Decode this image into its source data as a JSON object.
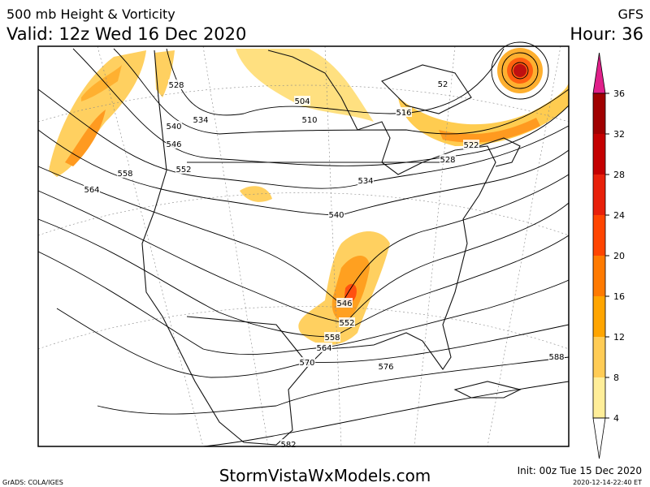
{
  "header": {
    "title": "500 mb Height & Vorticity",
    "valid": "Valid: 12z Wed 16 Dec 2020",
    "model": "GFS",
    "hour": "Hour: 36"
  },
  "colorbar": {
    "labels": [
      "36",
      "32",
      "28",
      "24",
      "20",
      "16",
      "12",
      "8",
      "4"
    ]
  },
  "contour_labels": [
    "528",
    "534",
    "540",
    "546",
    "552",
    "558",
    "564",
    "504",
    "510",
    "516",
    "522",
    "528",
    "534",
    "540",
    "546",
    "552",
    "558",
    "564",
    "570",
    "576",
    "588",
    "582",
    "52"
  ],
  "footer": {
    "credit": "GrADS: COLA/IGES",
    "site": "StormVistaWxModels.com",
    "init": "Init: 00z Tue 15 Dec 2020",
    "stamp": "2020-12-14-22:40 ET"
  }
}
